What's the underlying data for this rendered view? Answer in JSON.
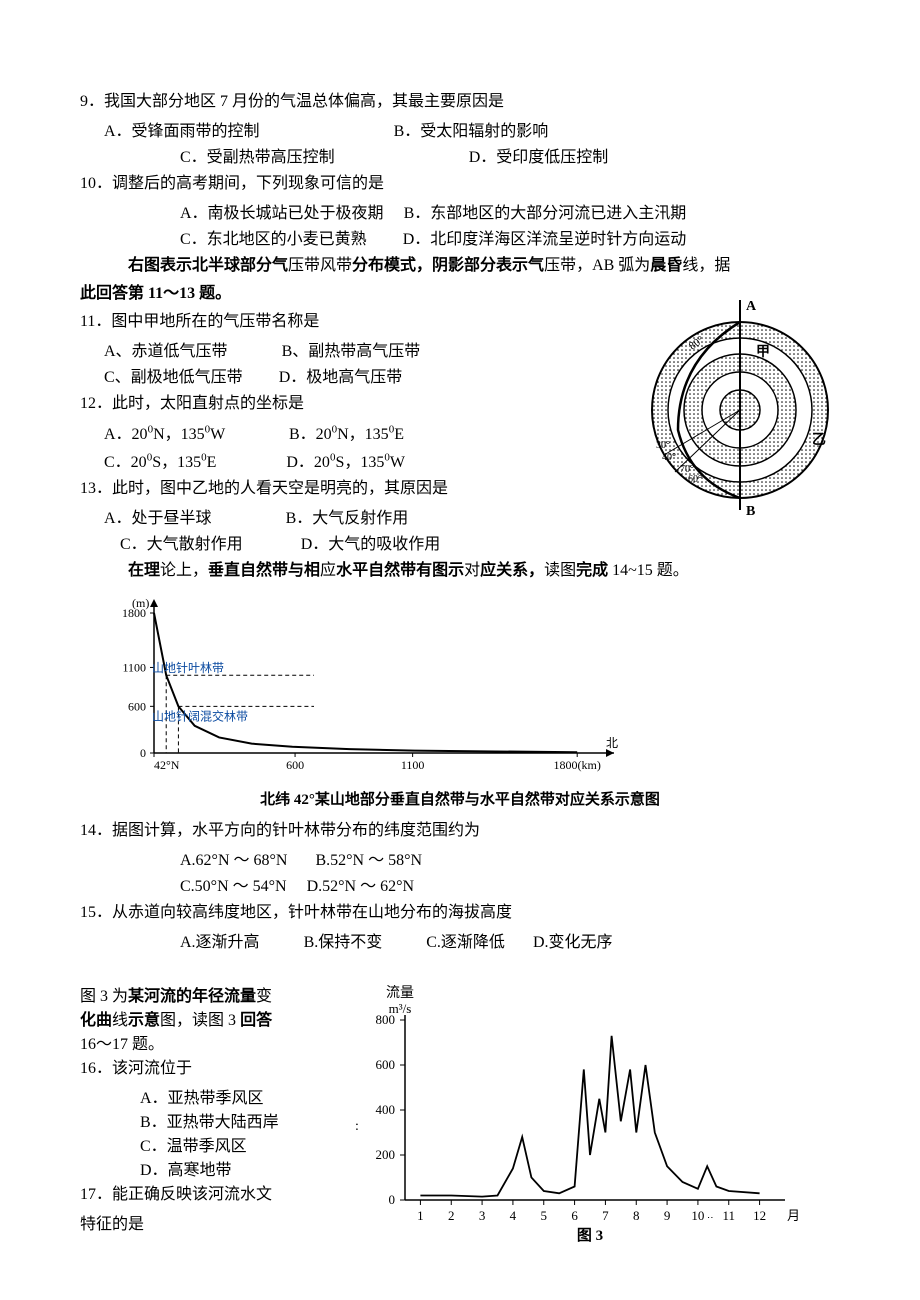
{
  "q9": {
    "num": "9．",
    "text": "我国大部分地区 7 月份的气温总体偏高，其最主要原因是",
    "optA": "A．受锋面雨带的控制",
    "optB": "B．受太阳辐射的影响",
    "optC": "C．受副热带高压控制",
    "optD": "D．受印度低压控制"
  },
  "q10": {
    "num": "10．",
    "text": "调整后的高考期间，下列现象可信的是",
    "optA": "A．南极长城站已处于极夜期",
    "optB": "B．东部地区的大部分河流已进入主汛期",
    "optC": "C．东北地区的小麦已黄熟",
    "optD": "D．北印度洋海区洋流呈逆时针方向运动"
  },
  "context1": {
    "line1_a": "右图",
    "line1_b": "表示北半球部分气",
    "line1_c": "压带风带",
    "line1_d": "分布模式，阴影部分表示气",
    "line1_e": "压带，AB 弧为",
    "line1_f": "晨昏",
    "line1_g": "线，据",
    "line2": "此回答第 11～13 题。"
  },
  "q11": {
    "num": "11．",
    "text": "图中甲地所在的气压带名称是",
    "optA": "A、赤道低气压带",
    "optB": "B、副热带高气压带",
    "optC": "C、副极地低气压带",
    "optD": "D．极地高气压带"
  },
  "q12": {
    "num": "12．",
    "text": "此时，太阳直射点的坐标是",
    "optA_pre": "A．20",
    "optA_post": "N，135",
    "optA_end": "W",
    "optB_pre": "B．20",
    "optB_post": "N，135",
    "optB_end": "E",
    "optC_pre": "C．20",
    "optC_post": "S，135",
    "optC_end": "E",
    "optD_pre": "D．20",
    "optD_post": "S，135",
    "optD_end": "W",
    "deg": "0"
  },
  "q13": {
    "num": "13．",
    "text": "此时，图中乙地的人看天空是明亮的，其原因是",
    "optA": "A．处于昼半球",
    "optB": "B．大气反射作用",
    "optC": "C．大气散射作用",
    "optD": "D．大气的吸收作用"
  },
  "context2": {
    "line1_a": "在理",
    "line1_b": "论上，",
    "line1_c": "垂直自然带与相",
    "line1_d": "应",
    "line1_e": "水平自然带有图示",
    "line1_f": "对",
    "line1_g": "应关系，",
    "line1_h": "读图",
    "line1_i": "完成",
    "line1_j": " 14~15 题。"
  },
  "mountain": {
    "type": "line",
    "caption": "北纬 42°某山地部分垂直自然带与水平自然带对应关系示意图",
    "y_label": "(m)",
    "y_ticks": [
      "0",
      "600",
      "1100",
      "1800"
    ],
    "x_ticks": [
      "42°N",
      "600",
      "1100",
      "1800(km)"
    ],
    "x_end_label": "北",
    "band1_label": "山地针叶林带",
    "band2_label": "山地针阔混交林带",
    "colors": {
      "axis": "#000000",
      "line": "#000000",
      "dash": "#000000",
      "text": "#000000",
      "bg": "#ffffff"
    },
    "mountain_outline": [
      [
        0,
        180
      ],
      [
        15,
        100
      ],
      [
        30,
        60
      ],
      [
        50,
        35
      ],
      [
        80,
        20
      ],
      [
        120,
        12
      ],
      [
        170,
        8
      ],
      [
        240,
        5
      ],
      [
        320,
        3
      ],
      [
        420,
        2
      ],
      [
        520,
        1
      ]
    ],
    "dash1_y": 100,
    "dash2_y": 60
  },
  "q14": {
    "num": "14．",
    "text": "据图计算，水平方向的针叶林带分布的纬度范围约为",
    "optA": "A.62°N ～ 68°N",
    "optB": "B.52°N ～ 58°N",
    "optC": "C.50°N ～ 54°N",
    "optD": "D.52°N ～ 62°N"
  },
  "q15": {
    "num": "15．",
    "text": "从赤道向较高纬度地区，针叶林带在山地分布的海拔高度",
    "optA": "A.逐渐升高",
    "optB": "B.保持不变",
    "optC": "C.逐渐降低",
    "optD": "D.变化无序"
  },
  "context3": {
    "line1_a": "图 3 为",
    "line1_b": "某河流的年径流量",
    "line1_c": "变",
    "line2_a": "化曲",
    "line2_b": "线",
    "line2_c": "示意",
    "line2_d": "图，读图 3 ",
    "line2_e": "回答",
    "line3": "16～17 题。"
  },
  "q16": {
    "num": "16．",
    "text": "该河流位于",
    "optA": "A．亚热带季风区",
    "optB": "B．亚热带大陆西岸",
    "optC": "C．温带季风区",
    "optD": "D．高寒地带"
  },
  "q17": {
    "num": "17．",
    "text": "能正确反映该河流水文",
    "text2": "特征的是"
  },
  "river": {
    "type": "line",
    "y_label": "流量",
    "y_unit": "m³/s",
    "y_ticks": [
      "0",
      "200",
      "400",
      "600",
      "800"
    ],
    "x_ticks": [
      "1",
      "2",
      "3",
      "4",
      "5",
      "6",
      "7",
      "8",
      "9",
      "10",
      "11",
      "12"
    ],
    "x_label": "月",
    "caption": "图 3",
    "colors": {
      "axis": "#000000",
      "line": "#000000",
      "text": "#000000",
      "bg": "#ffffff"
    },
    "data_points": [
      [
        1,
        20
      ],
      [
        2,
        20
      ],
      [
        3,
        15
      ],
      [
        3.5,
        20
      ],
      [
        4,
        140
      ],
      [
        4.3,
        280
      ],
      [
        4.6,
        100
      ],
      [
        5,
        40
      ],
      [
        5.5,
        30
      ],
      [
        6,
        60
      ],
      [
        6.3,
        580
      ],
      [
        6.5,
        200
      ],
      [
        6.8,
        450
      ],
      [
        7,
        300
      ],
      [
        7.2,
        730
      ],
      [
        7.5,
        350
      ],
      [
        7.8,
        580
      ],
      [
        8,
        300
      ],
      [
        8.3,
        600
      ],
      [
        8.6,
        300
      ],
      [
        9,
        150
      ],
      [
        9.5,
        80
      ],
      [
        10,
        50
      ],
      [
        10.3,
        150
      ],
      [
        10.6,
        60
      ],
      [
        11,
        40
      ],
      [
        12,
        30
      ]
    ]
  },
  "polar": {
    "type": "polar",
    "label_A": "A",
    "label_B": "B",
    "label_jia": "甲",
    "label_yi": "乙",
    "tick_labels": [
      "80°",
      "70°",
      "60°",
      "40°",
      "30°"
    ],
    "colors": {
      "line": "#000000",
      "fill_pattern": "#000000",
      "bg": "#ffffff"
    }
  }
}
